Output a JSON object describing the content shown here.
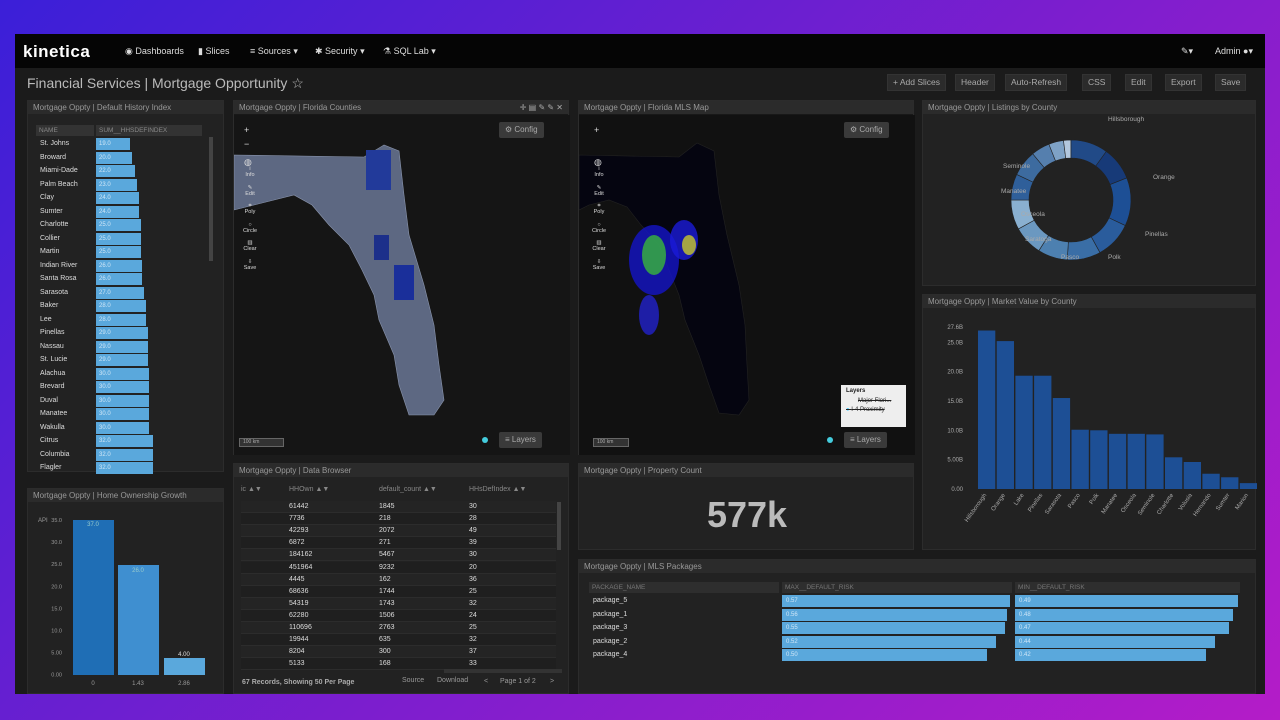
{
  "nav": {
    "brand": "kinetica",
    "items": [
      "Dashboards",
      "Slices",
      "Sources",
      "Security",
      "SQL Lab"
    ],
    "user": "Admin"
  },
  "header": {
    "title": "Financial Services | Mortgage Opportunity",
    "buttons": [
      "+ Add Slices",
      "Header",
      "Auto-Refresh",
      "CSS",
      "Edit",
      "Export",
      "Save"
    ]
  },
  "panels": {
    "default_history": "Mortgage Oppty | Default History Index",
    "home_growth": "Mortgage Oppty | Home Ownership Growth",
    "florida_counties": "Mortgage Oppty | Florida Counties",
    "data_browser": "Mortgage Oppty | Data Browser",
    "mls_map": "Mortgage Oppty | Florida MLS Map",
    "property_count": "Mortgage Oppty | Property Count",
    "mls_packages": "Mortgage Oppty | MLS Packages",
    "listings": "Mortgage Oppty | Listings by County",
    "market_value": "Mortgage Oppty | Market Value by County"
  },
  "default_history": {
    "headers": [
      "NAME",
      "SUM__HHSDEFINDEX"
    ],
    "rows": [
      [
        "St. Johns",
        "19.0"
      ],
      [
        "Broward",
        "20.0"
      ],
      [
        "Miami-Dade",
        "22.0"
      ],
      [
        "Palm Beach",
        "23.0"
      ],
      [
        "Clay",
        "24.0"
      ],
      [
        "Sumter",
        "24.0"
      ],
      [
        "Charlotte",
        "25.0"
      ],
      [
        "Collier",
        "25.0"
      ],
      [
        "Martin",
        "25.0"
      ],
      [
        "Indian River",
        "26.0"
      ],
      [
        "Santa Rosa",
        "26.0"
      ],
      [
        "Sarasota",
        "27.0"
      ],
      [
        "Baker",
        "28.0"
      ],
      [
        "Lee",
        "28.0"
      ],
      [
        "Pinellas",
        "29.0"
      ],
      [
        "Nassau",
        "29.0"
      ],
      [
        "St. Lucie",
        "29.0"
      ],
      [
        "Alachua",
        "30.0"
      ],
      [
        "Brevard",
        "30.0"
      ],
      [
        "Duval",
        "30.0"
      ],
      [
        "Manatee",
        "30.0"
      ],
      [
        "Wakulla",
        "30.0"
      ],
      [
        "Citrus",
        "32.0"
      ],
      [
        "Columbia",
        "32.0"
      ],
      [
        "Flagler",
        "32.0"
      ]
    ]
  },
  "home_growth": {
    "ylabel": "API",
    "yticks": [
      "35.0",
      "30.0",
      "25.0",
      "20.0",
      "15.0",
      "10.0",
      "5.00",
      "0.00"
    ],
    "xticks": [
      "0",
      "1.43",
      "2.86"
    ],
    "labels": [
      "37.0",
      "26.0",
      "4.00"
    ]
  },
  "map": {
    "config": "Config",
    "layers": "Layers",
    "scale": "100 km",
    "tools": [
      "Info",
      "Edit",
      "Poly",
      "Circle",
      "Clear",
      "Save"
    ],
    "legend_title": "Layers",
    "legend_items": [
      "Major Flori...",
      "I-4 Proximity"
    ]
  },
  "data_browser": {
    "headers": [
      "ic ▲▼",
      "HHOwn ▲▼",
      "default_count ▲▼",
      "HHsDefIndex ▲▼"
    ],
    "rows": [
      [
        "61442",
        "1845",
        "30"
      ],
      [
        "7736",
        "218",
        "28"
      ],
      [
        "42293",
        "2072",
        "49"
      ],
      [
        "6872",
        "271",
        "39"
      ],
      [
        "184162",
        "5467",
        "30"
      ],
      [
        "451964",
        "9232",
        "20"
      ],
      [
        "4445",
        "162",
        "36"
      ],
      [
        "68636",
        "1744",
        "25"
      ],
      [
        "54319",
        "1743",
        "32"
      ],
      [
        "62280",
        "1506",
        "24"
      ],
      [
        "110696",
        "2763",
        "25"
      ],
      [
        "19944",
        "635",
        "32"
      ],
      [
        "8204",
        "300",
        "37"
      ],
      [
        "5133",
        "168",
        "33"
      ]
    ],
    "footer": {
      "records": "67 Records, Showing 50 Per Page",
      "source": "Source",
      "download": "Download",
      "page": "Page 1 of 2"
    }
  },
  "property_count": {
    "value": "577k"
  },
  "mls_packages": {
    "headers": [
      "PACKAGE_NAME",
      "MAX__DEFAULT_RISK",
      "MIN__DEFAULT_RISK"
    ],
    "rows": [
      [
        "package_5",
        "0.57",
        "0.49"
      ],
      [
        "package_1",
        "0.56",
        "0.48"
      ],
      [
        "package_3",
        "0.55",
        "0.47"
      ],
      [
        "package_2",
        "0.52",
        "0.44"
      ],
      [
        "package_4",
        "0.50",
        "0.42"
      ]
    ],
    "max_fill": [
      0.99,
      0.98,
      0.97,
      0.93,
      0.89
    ],
    "min_fill": [
      0.99,
      0.97,
      0.95,
      0.89,
      0.85
    ]
  },
  "chart_data": [
    {
      "type": "pie",
      "title": "",
      "labels": [
        "Hillsborough",
        "Orange",
        "Pinellas",
        "Polk",
        "Pasco",
        "Saratoga",
        "Osceola",
        "Manatee",
        "Seminole"
      ]
    },
    {
      "type": "bar",
      "title": "",
      "categories": [
        "Hillsborough",
        "Orange",
        "Lake",
        "Pinellas",
        "Sarasota",
        "Pasco",
        "Polk",
        "Manatee",
        "Osceola",
        "Seminole",
        "Charlotte",
        "Volusia",
        "Hernando",
        "Sumter",
        "Marion"
      ],
      "values": [
        27.0,
        25.2,
        19.3,
        19.3,
        15.5,
        10.1,
        10.0,
        9.4,
        9.4,
        9.3,
        5.4,
        4.6,
        2.6,
        2.0,
        1.0
      ],
      "yticks": [
        "0.00",
        "5.00B",
        "10.0B",
        "15.0B",
        "20.0B",
        "25.0B",
        "27.6B"
      ],
      "ylim": [
        0,
        27.6
      ]
    }
  ],
  "colors": {
    "bar_blue": "#5aa8dc",
    "dark_blue": "#1d4f95"
  }
}
